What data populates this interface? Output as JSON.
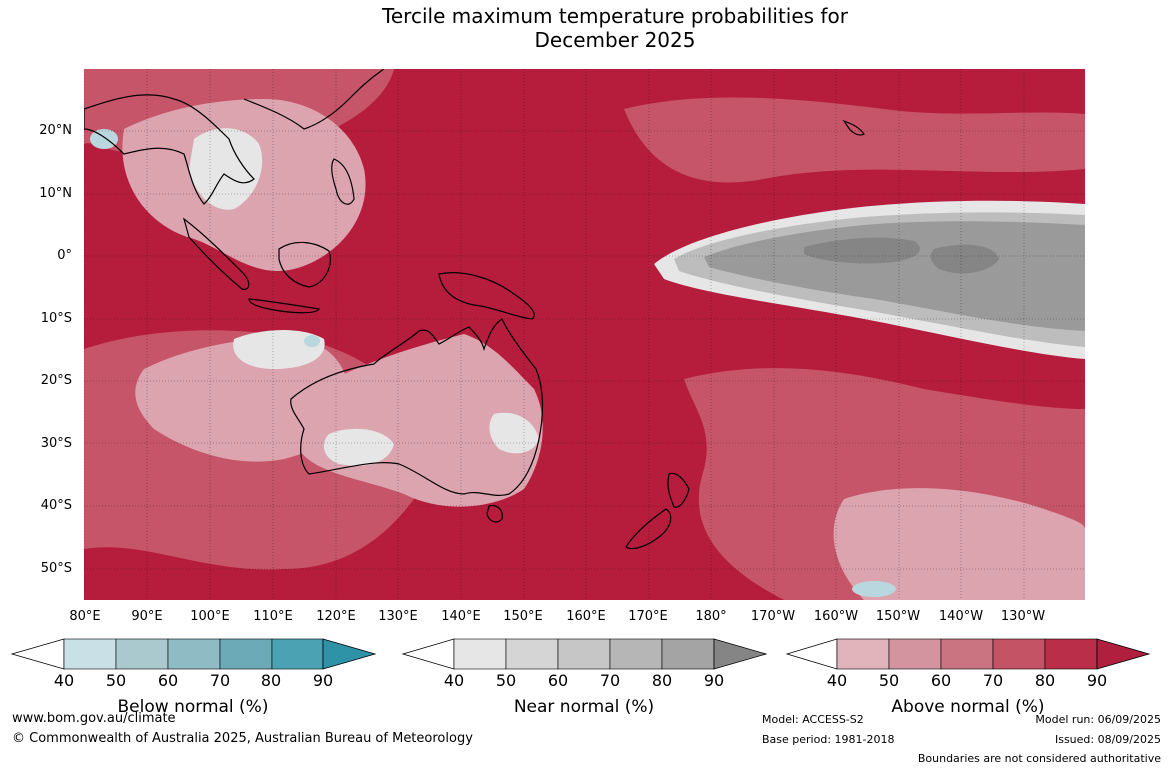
{
  "title_line1": "Tercile maximum temperature probabilities for",
  "title_line2": "December 2025",
  "lat_labels": [
    "20°N",
    "10°N",
    "0°",
    "10°S",
    "20°S",
    "30°S",
    "40°S",
    "50°S"
  ],
  "lon_labels": [
    "80°E",
    "90°E",
    "100°E",
    "110°E",
    "120°E",
    "130°E",
    "140°E",
    "150°E",
    "160°E",
    "170°E",
    "180°",
    "170°W",
    "160°W",
    "150°W",
    "140°W",
    "130°W"
  ],
  "colorbars": [
    {
      "label": "Below normal (%)",
      "ticks": [
        "40",
        "50",
        "60",
        "70",
        "80",
        "90"
      ],
      "colors": [
        "#c9e0e6",
        "#a9c9cf",
        "#8fbbc5",
        "#6daab7",
        "#4aa2b2",
        "#2f93a8"
      ]
    },
    {
      "label": "Near normal (%)",
      "ticks": [
        "40",
        "50",
        "60",
        "70",
        "80",
        "90"
      ],
      "colors": [
        "#e6e6e6",
        "#d5d5d5",
        "#c6c6c6",
        "#b6b6b6",
        "#a4a4a4",
        "#858585"
      ]
    },
    {
      "label": "Above normal (%)",
      "ticks": [
        "40",
        "50",
        "60",
        "70",
        "80",
        "90"
      ],
      "colors": [
        "#e1b4bc",
        "#d4949f",
        "#c97480",
        "#c45366",
        "#bb2e49",
        "#b01f3d"
      ]
    }
  ],
  "map_colors": {
    "above_high": "#b61d3c",
    "above_mid": "#c65569",
    "above_low": "#dba4af",
    "near_low": "#e6e6e6",
    "near_mid": "#bdbdbd",
    "near_high": "#9a9a9a",
    "near_peak": "#858585",
    "below_low": "#b9d7de"
  },
  "footer": {
    "website": "www.bom.gov.au/climate",
    "copyright": "© Commonwealth of Australia 2025, Australian Bureau of Meteorology",
    "model": "Model: ACCESS-S2",
    "base_period": "Base period: 1981-2018",
    "model_run": "Model run: 06/09/2025",
    "issued": "Issued: 08/09/2025",
    "disclaimer": "Boundaries are not considered authoritative"
  }
}
